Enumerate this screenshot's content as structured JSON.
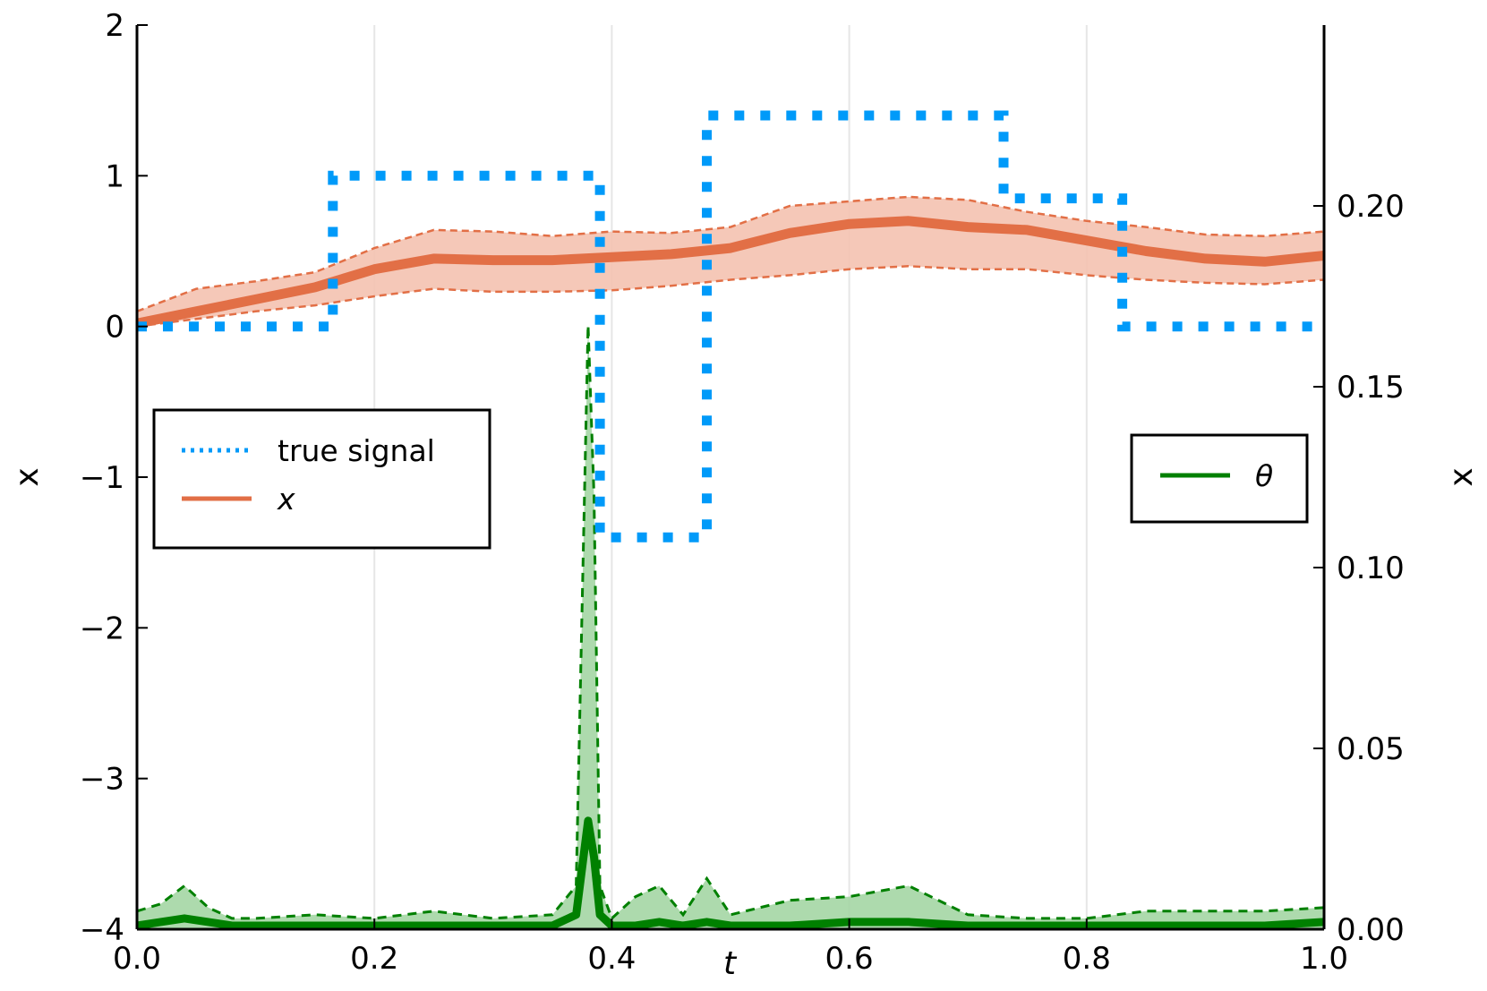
{
  "chart_data": {
    "type": "line",
    "xlabel": "t",
    "ylabel_left": "x",
    "ylabel_right": "x",
    "xlim": [
      0.0,
      1.0
    ],
    "ylim_left": [
      -4,
      2
    ],
    "ylim_right": [
      0.0,
      0.25
    ],
    "x_ticks": [
      {
        "value": 0.0,
        "label": "0.0"
      },
      {
        "value": 0.2,
        "label": "0.2"
      },
      {
        "value": 0.4,
        "label": "0.4"
      },
      {
        "value": 0.6,
        "label": "0.6"
      },
      {
        "value": 0.8,
        "label": "0.8"
      },
      {
        "value": 1.0,
        "label": "1.0"
      }
    ],
    "y_left_ticks": [
      {
        "value": 2,
        "label": "2"
      },
      {
        "value": 1,
        "label": "1"
      },
      {
        "value": 0,
        "label": "0"
      },
      {
        "value": -1,
        "label": "−1"
      },
      {
        "value": -2,
        "label": "−2"
      },
      {
        "value": -3,
        "label": "−3"
      },
      {
        "value": -4,
        "label": "−4"
      }
    ],
    "y_right_ticks": [
      {
        "value": 0.2,
        "label": "0.20"
      },
      {
        "value": 0.15,
        "label": "0.15"
      },
      {
        "value": 0.1,
        "label": "0.10"
      },
      {
        "value": 0.05,
        "label": "0.05"
      },
      {
        "value": 0.0,
        "label": "0.00"
      }
    ],
    "grid": "vertical",
    "colors": {
      "true_signal": "#009af9",
      "x": "#e26f46",
      "x_band": "#f4c2b0",
      "theta": "#008000",
      "theta_band": "#9fd39f",
      "grid": "#e6e6e6"
    },
    "legends": [
      {
        "placement": "left-middle",
        "entries": [
          "true signal",
          "x"
        ]
      },
      {
        "placement": "right-middle",
        "entries": [
          "θ"
        ]
      }
    ],
    "series": [
      {
        "name": "true signal",
        "axis": "left",
        "style": "dotted",
        "x": [
          0.0,
          0.165,
          0.165,
          0.39,
          0.39,
          0.48,
          0.48,
          0.73,
          0.73,
          0.83,
          0.83,
          1.0
        ],
        "y": [
          0.0,
          0.0,
          1.0,
          1.0,
          -1.4,
          -1.4,
          1.4,
          1.4,
          0.85,
          0.85,
          0.0,
          0.0
        ]
      },
      {
        "name": "x",
        "axis": "left",
        "style": "line-with-band",
        "x": [
          0.0,
          0.05,
          0.1,
          0.15,
          0.2,
          0.25,
          0.3,
          0.35,
          0.4,
          0.45,
          0.5,
          0.55,
          0.6,
          0.65,
          0.7,
          0.75,
          0.8,
          0.85,
          0.9,
          0.95,
          1.0
        ],
        "y": [
          0.02,
          0.1,
          0.18,
          0.26,
          0.38,
          0.45,
          0.44,
          0.44,
          0.46,
          0.48,
          0.52,
          0.62,
          0.68,
          0.7,
          0.66,
          0.64,
          0.57,
          0.5,
          0.45,
          0.43,
          0.47
        ],
        "lower": [
          0.0,
          0.05,
          0.1,
          0.14,
          0.2,
          0.25,
          0.23,
          0.23,
          0.24,
          0.27,
          0.31,
          0.34,
          0.38,
          0.4,
          0.38,
          0.38,
          0.34,
          0.31,
          0.29,
          0.28,
          0.31
        ],
        "upper": [
          0.1,
          0.25,
          0.3,
          0.36,
          0.52,
          0.64,
          0.63,
          0.6,
          0.63,
          0.62,
          0.66,
          0.8,
          0.83,
          0.86,
          0.84,
          0.76,
          0.7,
          0.66,
          0.61,
          0.6,
          0.63
        ]
      },
      {
        "name": "θ",
        "axis": "right",
        "style": "line-with-band",
        "x": [
          0.0,
          0.02,
          0.04,
          0.06,
          0.08,
          0.1,
          0.15,
          0.2,
          0.25,
          0.3,
          0.35,
          0.37,
          0.38,
          0.385,
          0.39,
          0.4,
          0.42,
          0.44,
          0.46,
          0.48,
          0.5,
          0.55,
          0.6,
          0.65,
          0.7,
          0.75,
          0.8,
          0.85,
          0.9,
          0.95,
          1.0
        ],
        "y": [
          0.001,
          0.002,
          0.003,
          0.002,
          0.001,
          0.001,
          0.001,
          0.001,
          0.001,
          0.001,
          0.001,
          0.004,
          0.03,
          0.02,
          0.004,
          0.001,
          0.001,
          0.002,
          0.001,
          0.002,
          0.001,
          0.001,
          0.002,
          0.002,
          0.001,
          0.001,
          0.001,
          0.001,
          0.001,
          0.001,
          0.002
        ],
        "lower": [
          0.0,
          0.0,
          0.0,
          0.0,
          0.0,
          0.0,
          0.0,
          0.0,
          0.0,
          0.0,
          0.0,
          0.0,
          0.0,
          0.0,
          0.0,
          0.0,
          0.0,
          0.0,
          0.0,
          0.0,
          0.0,
          0.0,
          0.0,
          0.0,
          0.0,
          0.0,
          0.0,
          0.0,
          0.0,
          0.0,
          0.0
        ],
        "upper": [
          0.005,
          0.007,
          0.012,
          0.006,
          0.003,
          0.003,
          0.004,
          0.003,
          0.005,
          0.003,
          0.004,
          0.012,
          0.167,
          0.12,
          0.012,
          0.003,
          0.009,
          0.012,
          0.004,
          0.014,
          0.004,
          0.008,
          0.009,
          0.012,
          0.004,
          0.003,
          0.003,
          0.005,
          0.005,
          0.005,
          0.006
        ]
      }
    ]
  }
}
